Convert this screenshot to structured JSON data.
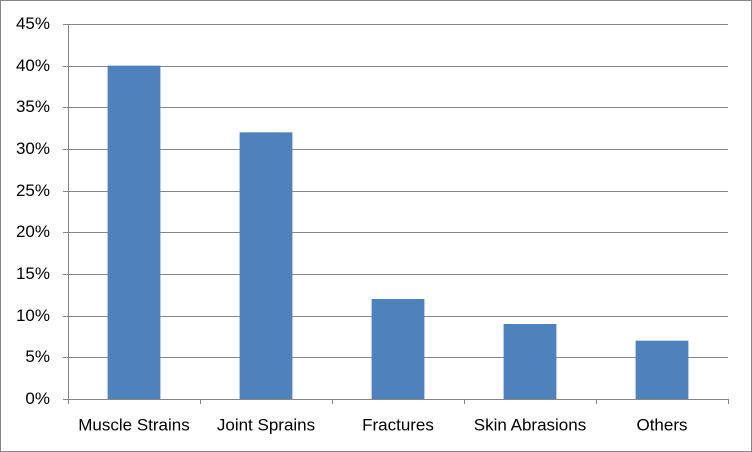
{
  "chart_data": {
    "type": "bar",
    "categories": [
      "Muscle Strains",
      "Joint Sprains",
      "Fractures",
      "Skin Abrasions",
      "Others"
    ],
    "values": [
      40,
      32,
      12,
      9,
      7
    ],
    "color": "#4f81bd",
    "ylim": [
      0,
      45
    ],
    "yticks": [
      {
        "value": 0,
        "label": "0%"
      },
      {
        "value": 5,
        "label": "5%"
      },
      {
        "value": 10,
        "label": "10%"
      },
      {
        "value": 15,
        "label": "15%"
      },
      {
        "value": 20,
        "label": "20%"
      },
      {
        "value": 25,
        "label": "25%"
      },
      {
        "value": 30,
        "label": "30%"
      },
      {
        "value": 35,
        "label": "35%"
      },
      {
        "value": 40,
        "label": "40%"
      },
      {
        "value": 45,
        "label": "45%"
      }
    ],
    "grid": true
  }
}
